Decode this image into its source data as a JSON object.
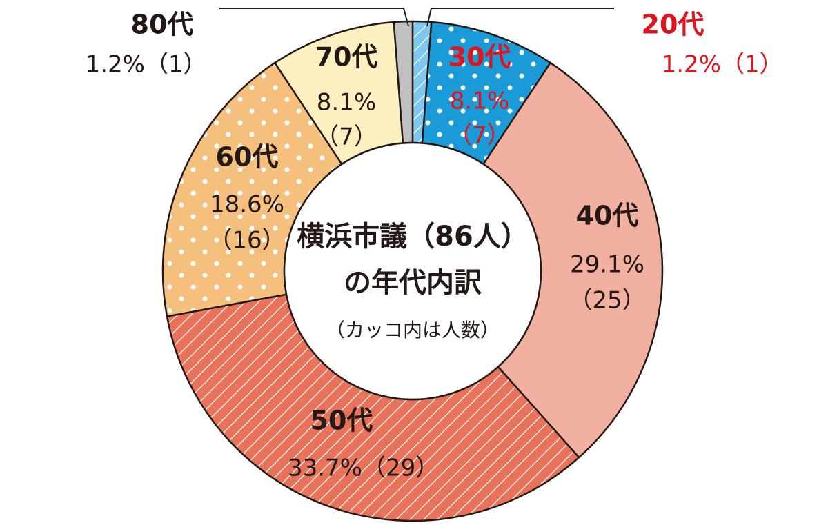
{
  "chart_data": {
    "type": "donut",
    "title": "横浜市議（86人）",
    "title_line2": "の年代内訳",
    "subtitle": "（カッコ内は人数）",
    "categories": [
      "20代",
      "30代",
      "40代",
      "50代",
      "60代",
      "70代",
      "80代"
    ],
    "values": [
      1.2,
      8.1,
      29.1,
      33.7,
      18.6,
      8.1,
      1.2
    ],
    "value_labels": [
      "1.2%",
      "8.1%",
      "29.1%",
      "33.7%",
      "18.6%",
      "8.1%",
      "1.2%"
    ],
    "counts": [
      1,
      7,
      25,
      29,
      16,
      7,
      1
    ],
    "count_labels": [
      "（1）",
      "（7）",
      "（25）",
      "（29）",
      "（16）",
      "（7）",
      "（1）"
    ],
    "colors": [
      "#7ec8ee",
      "#1a9ad6",
      "#f2b0a0",
      "#e8735a",
      "#f5c07e",
      "#fdf0c0",
      "#c0c0c0"
    ],
    "patterns": [
      "hatch",
      "dots",
      "none",
      "hatch",
      "dots",
      "none",
      "none"
    ],
    "label_colors": [
      "#e0141e",
      "#e0141e",
      "#231815",
      "#231815",
      "#231815",
      "#231815",
      "#231815"
    ]
  }
}
